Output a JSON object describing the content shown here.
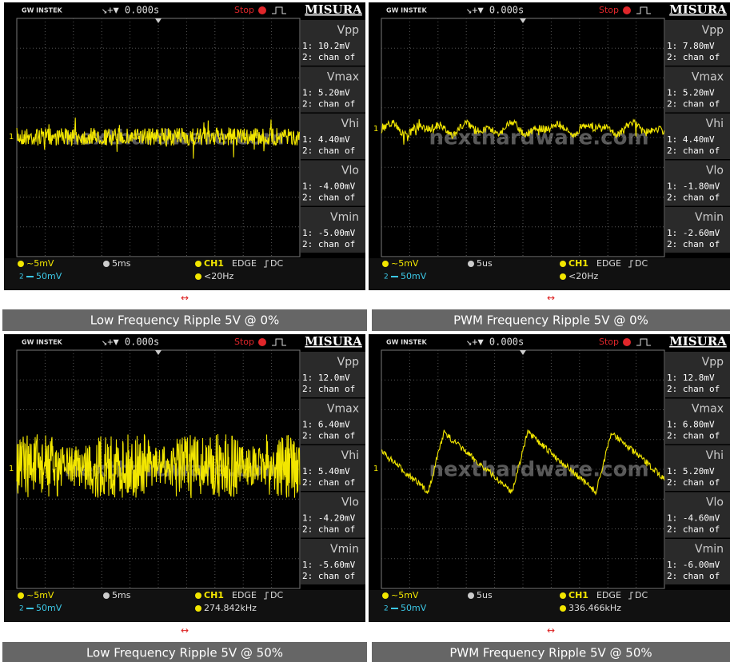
{
  "panels": [
    {
      "header": {
        "brand": "GW INSTEK",
        "time": "↘+▼ 0.000s",
        "status": "Stop",
        "mode": "MISURA"
      },
      "channel_marker": "1",
      "measurements": [
        {
          "label": "Vpp",
          "ch1": "1: 10.2mV",
          "ch2": "2: chan of"
        },
        {
          "label": "Vmax",
          "ch1": "1: 5.20mV",
          "ch2": "2: chan of"
        },
        {
          "label": "Vhi",
          "ch1": "1: 4.40mV",
          "ch2": "2: chan of"
        },
        {
          "label": "Vlo",
          "ch1": "1: -4.00mV",
          "ch2": "2: chan of"
        },
        {
          "label": "Vmin",
          "ch1": "1: -5.00mV",
          "ch2": "2: chan of"
        }
      ],
      "footer": {
        "ch1_scale": "~5mV",
        "timebase": "5ms",
        "trigger_source": "CH1",
        "trigger_type": "EDGE",
        "coupling": "DC",
        "ch2_scale": "50mV",
        "frequency": "<20Hz"
      },
      "watermark": "nexthardware.com",
      "arrow": "↔",
      "caption": "Low Frequency Ripple 5V @ 0%"
    },
    {
      "header": {
        "brand": "GW INSTEK",
        "time": "↘+▼ 0.000s",
        "status": "Stop",
        "mode": "MISURA"
      },
      "channel_marker": "1",
      "measurements": [
        {
          "label": "Vpp",
          "ch1": "1: 7.80mV",
          "ch2": "2: chan of"
        },
        {
          "label": "Vmax",
          "ch1": "1: 5.20mV",
          "ch2": "2: chan of"
        },
        {
          "label": "Vhi",
          "ch1": "1: 4.40mV",
          "ch2": "2: chan of"
        },
        {
          "label": "Vlo",
          "ch1": "1: -1.80mV",
          "ch2": "2: chan of"
        },
        {
          "label": "Vmin",
          "ch1": "1: -2.60mV",
          "ch2": "2: chan of"
        }
      ],
      "footer": {
        "ch1_scale": "~5mV",
        "timebase": "5us",
        "trigger_source": "CH1",
        "trigger_type": "EDGE",
        "coupling": "DC",
        "ch2_scale": "50mV",
        "frequency": "<20Hz"
      },
      "watermark": "nexthardware.com",
      "arrow": "↔",
      "caption": "PWM Frequency Ripple 5V @ 0%"
    },
    {
      "header": {
        "brand": "GW INSTEK",
        "time": "↘+▼ 0.000s",
        "status": "Stop",
        "mode": "MISURA"
      },
      "channel_marker": "1",
      "measurements": [
        {
          "label": "Vpp",
          "ch1": "1: 12.0mV",
          "ch2": "2: chan of"
        },
        {
          "label": "Vmax",
          "ch1": "1: 6.40mV",
          "ch2": "2: chan of"
        },
        {
          "label": "Vhi",
          "ch1": "1: 5.40mV",
          "ch2": "2: chan of"
        },
        {
          "label": "Vlo",
          "ch1": "1: -4.20mV",
          "ch2": "2: chan of"
        },
        {
          "label": "Vmin",
          "ch1": "1: -5.60mV",
          "ch2": "2: chan of"
        }
      ],
      "footer": {
        "ch1_scale": "~5mV",
        "timebase": "5ms",
        "trigger_source": "CH1",
        "trigger_type": "EDGE",
        "coupling": "DC",
        "ch2_scale": "50mV",
        "frequency": "274.842kHz"
      },
      "watermark": "nexthardware.com",
      "arrow": "↔",
      "caption": "Low Frequency Ripple 5V @ 50%"
    },
    {
      "header": {
        "brand": "GW INSTEK",
        "time": "↘+▼ 0.000s",
        "status": "Stop",
        "mode": "MISURA"
      },
      "channel_marker": "1",
      "measurements": [
        {
          "label": "Vpp",
          "ch1": "1: 12.8mV",
          "ch2": "2: chan of"
        },
        {
          "label": "Vmax",
          "ch1": "1: 6.80mV",
          "ch2": "2: chan of"
        },
        {
          "label": "Vhi",
          "ch1": "1: 5.20mV",
          "ch2": "2: chan of"
        },
        {
          "label": "Vlo",
          "ch1": "1: -4.60mV",
          "ch2": "2: chan of"
        },
        {
          "label": "Vmin",
          "ch1": "1: -6.00mV",
          "ch2": "2: chan of"
        }
      ],
      "footer": {
        "ch1_scale": "~5mV",
        "timebase": "5us",
        "trigger_source": "CH1",
        "trigger_type": "EDGE",
        "coupling": "DC",
        "ch2_scale": "50mV",
        "frequency": "336.466kHz"
      },
      "watermark": "nexthardware.com",
      "arrow": "↔",
      "caption": "PWM Frequency Ripple 5V @ 50%"
    }
  ]
}
